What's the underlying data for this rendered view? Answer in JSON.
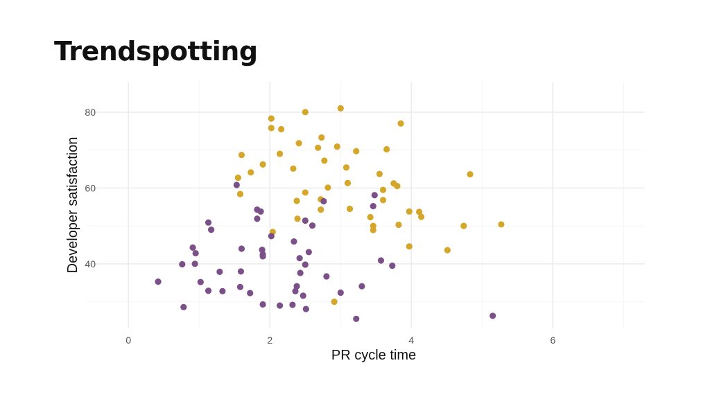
{
  "page": {
    "title": "Trendspotting"
  },
  "colors": {
    "group_a": "#D4A62A",
    "group_b": "#7B5088",
    "grid_major": "#EBEBEB",
    "grid_minor": "#F5F5F5"
  },
  "chart_data": {
    "type": "scatter",
    "title": "",
    "xlabel": "PR cycle time",
    "ylabel": "Developer satisfaction",
    "xlim": [
      -0.6,
      7.3
    ],
    "ylim": [
      23,
      88
    ],
    "x_ticks": [
      0,
      2,
      4,
      6
    ],
    "y_ticks": [
      40,
      60,
      80
    ],
    "x_tick_labels": [
      "0",
      "2",
      "4",
      "6"
    ],
    "y_tick_labels": [
      "40",
      "60",
      "80"
    ],
    "grid": true,
    "legend": "none",
    "series": [
      {
        "color": "#D4A62A",
        "points": [
          [
            2.02,
            78.3
          ],
          [
            2.5,
            80.0
          ],
          [
            3.0,
            81.0
          ],
          [
            3.85,
            77.0
          ],
          [
            2.02,
            75.8
          ],
          [
            2.16,
            75.5
          ],
          [
            2.73,
            73.3
          ],
          [
            2.41,
            71.8
          ],
          [
            2.68,
            70.6
          ],
          [
            2.95,
            70.9
          ],
          [
            1.6,
            68.7
          ],
          [
            2.14,
            69.0
          ],
          [
            3.22,
            69.7
          ],
          [
            3.65,
            70.2
          ],
          [
            2.77,
            67.2
          ],
          [
            1.9,
            66.2
          ],
          [
            2.33,
            65.1
          ],
          [
            3.08,
            65.4
          ],
          [
            1.73,
            64.1
          ],
          [
            1.55,
            62.7
          ],
          [
            3.55,
            63.7
          ],
          [
            4.83,
            63.6
          ],
          [
            3.1,
            61.3
          ],
          [
            3.75,
            61.2
          ],
          [
            3.8,
            60.5
          ],
          [
            2.82,
            60.1
          ],
          [
            2.5,
            58.8
          ],
          [
            1.58,
            58.4
          ],
          [
            3.6,
            59.5
          ],
          [
            2.38,
            56.6
          ],
          [
            2.72,
            57.0
          ],
          [
            3.6,
            56.8
          ],
          [
            2.72,
            54.3
          ],
          [
            3.13,
            54.5
          ],
          [
            3.97,
            53.8
          ],
          [
            4.11,
            53.7
          ],
          [
            4.14,
            52.4
          ],
          [
            3.42,
            52.3
          ],
          [
            2.39,
            51.9
          ],
          [
            3.82,
            50.3
          ],
          [
            3.46,
            50.0
          ],
          [
            4.74,
            50.0
          ],
          [
            5.27,
            50.4
          ],
          [
            3.46,
            48.9
          ],
          [
            2.04,
            48.4
          ],
          [
            3.97,
            44.6
          ],
          [
            4.51,
            43.6
          ],
          [
            2.91,
            30.0
          ]
        ]
      },
      {
        "color": "#7B5088",
        "points": [
          [
            1.53,
            60.8
          ],
          [
            2.76,
            56.5
          ],
          [
            3.48,
            58.1
          ],
          [
            3.46,
            55.2
          ],
          [
            1.82,
            54.3
          ],
          [
            1.87,
            53.8
          ],
          [
            1.82,
            51.9
          ],
          [
            2.5,
            51.4
          ],
          [
            2.6,
            50.1
          ],
          [
            1.13,
            50.9
          ],
          [
            1.17,
            49.0
          ],
          [
            2.02,
            47.3
          ],
          [
            2.34,
            45.9
          ],
          [
            0.91,
            44.3
          ],
          [
            0.95,
            42.8
          ],
          [
            1.6,
            44.0
          ],
          [
            1.89,
            43.7
          ],
          [
            2.55,
            43.1
          ],
          [
            1.9,
            42.5
          ],
          [
            1.9,
            42.0
          ],
          [
            2.42,
            41.5
          ],
          [
            3.57,
            40.9
          ],
          [
            0.76,
            39.9
          ],
          [
            0.94,
            40.0
          ],
          [
            2.5,
            39.8
          ],
          [
            3.73,
            39.5
          ],
          [
            1.29,
            37.9
          ],
          [
            1.59,
            38.0
          ],
          [
            2.43,
            37.6
          ],
          [
            2.8,
            36.7
          ],
          [
            0.42,
            35.3
          ],
          [
            1.02,
            35.2
          ],
          [
            2.38,
            34.1
          ],
          [
            1.58,
            33.9
          ],
          [
            3.3,
            34.1
          ],
          [
            1.13,
            32.9
          ],
          [
            1.33,
            32.8
          ],
          [
            2.36,
            32.8
          ],
          [
            1.72,
            32.3
          ],
          [
            3.0,
            32.4
          ],
          [
            2.47,
            31.6
          ],
          [
            1.9,
            29.3
          ],
          [
            2.14,
            29.0
          ],
          [
            2.32,
            29.2
          ],
          [
            0.78,
            28.6
          ],
          [
            2.51,
            28.1
          ],
          [
            3.22,
            25.5
          ],
          [
            5.15,
            26.3
          ]
        ]
      }
    ]
  }
}
